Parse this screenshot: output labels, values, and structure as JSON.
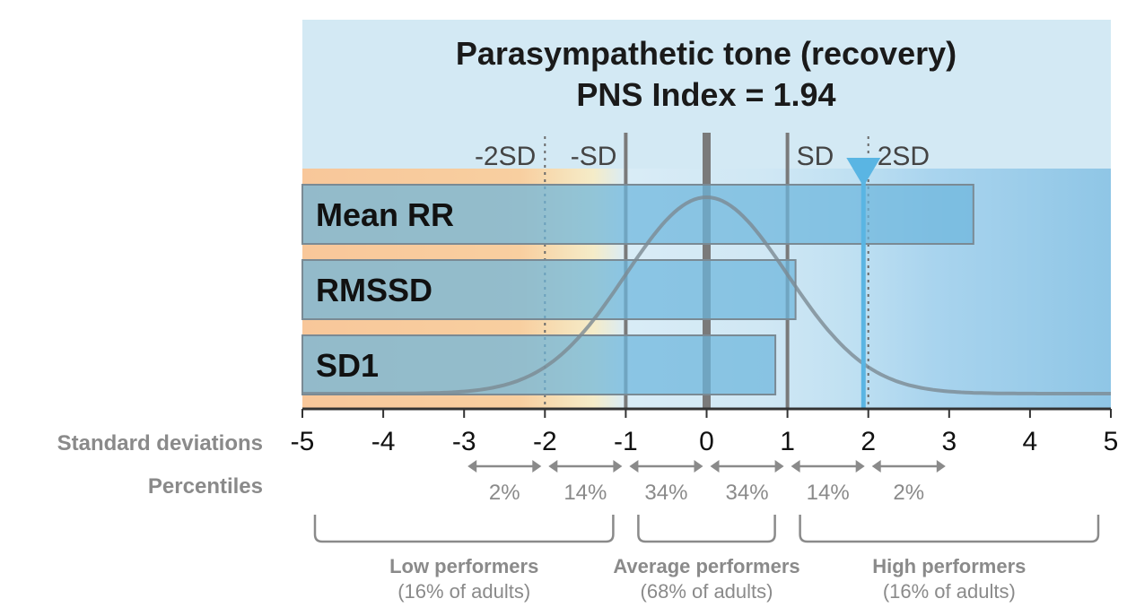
{
  "chart_data": {
    "type": "bar",
    "orientation": "horizontal",
    "title": "Parasympathetic tone (recovery)",
    "subtitle": "PNS Index = 1.94",
    "index_value": 1.94,
    "categories": [
      "Mean RR",
      "RMSSD",
      "SD1"
    ],
    "values": [
      3.3,
      1.1,
      0.85
    ],
    "baseline": -5,
    "xlim": [
      -5,
      5
    ],
    "x_ticks": [
      -5,
      -4,
      -3,
      -2,
      -1,
      0,
      1,
      2,
      3,
      4,
      5
    ],
    "x_tick_labels": [
      "-5",
      "-4",
      "-3",
      "-2",
      "-1",
      "0",
      "1",
      "2",
      "3",
      "4",
      "5"
    ],
    "sd_markers": [
      {
        "label": "-2SD",
        "x": -2,
        "style": "dotted"
      },
      {
        "label": "-SD",
        "x": -1,
        "style": "solid"
      },
      {
        "label": "SD",
        "x": 1,
        "style": "solid"
      },
      {
        "label": "2SD",
        "x": 2,
        "style": "dotted"
      }
    ],
    "row_labels": {
      "standard_deviations": "Standard deviations",
      "percentiles": "Percentiles"
    },
    "percentile_intervals": [
      {
        "from": -3,
        "to": -2,
        "label": "2%"
      },
      {
        "from": -2,
        "to": -1,
        "label": "14%"
      },
      {
        "from": -1,
        "to": 0,
        "label": "34%"
      },
      {
        "from": 0,
        "to": 1,
        "label": "34%"
      },
      {
        "from": 1,
        "to": 2,
        "label": "14%"
      },
      {
        "from": 2,
        "to": 3,
        "label": "2%"
      }
    ],
    "groups": [
      {
        "from": -5,
        "to": -1,
        "title": "Low performers",
        "subtitle": "(16% of adults)"
      },
      {
        "from": -1,
        "to": 1,
        "title": "Average performers",
        "subtitle": "(68% of adults)"
      },
      {
        "from": 1,
        "to": 5,
        "title": "High performers",
        "subtitle": "(16% of adults)"
      }
    ],
    "curve": "normal-distribution",
    "colors": {
      "header_bg": "#d3e9f4",
      "low_zone": "#f8c79a",
      "high_zone": "#8fc6e6",
      "bar_fill": "#6cb6dd",
      "bar_stroke": "#7a8a94",
      "curve": "#7c8a92",
      "marker": "#5ab5e3",
      "axis": "#333333",
      "muted_text": "#8a8a8a"
    }
  }
}
